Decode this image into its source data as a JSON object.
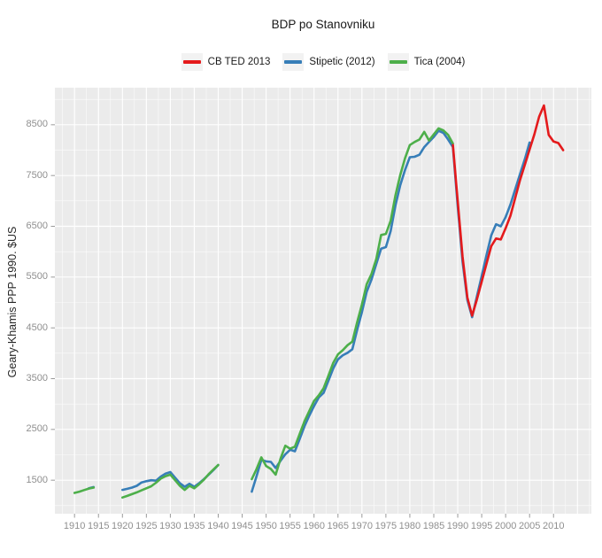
{
  "title": "BDP po Stanovniku",
  "y_axis_title": "Geary-Khamis PPP 1990. $US",
  "legend": {
    "items": [
      {
        "label": "CB TED 2013",
        "color": "#E41A1C"
      },
      {
        "label": "Stipetic (2012)",
        "color": "#377EB8"
      },
      {
        "label": "Tica (2004)",
        "color": "#4DAF4A"
      }
    ]
  },
  "colors": {
    "panel_background": "#EBEBEB",
    "gridline": "#FFFFFF",
    "tick_mark": "#999999",
    "tick_text": "#8F8F8F",
    "red": "#E41A1C",
    "blue": "#377EB8",
    "green": "#4DAF4A"
  },
  "chart_data": {
    "type": "line",
    "title": "BDP po Stanovniku",
    "xlabel": "",
    "ylabel": "Geary-Khamis PPP 1990. $US",
    "x_tick_labels": [
      1910,
      1915,
      1920,
      1925,
      1930,
      1935,
      1940,
      1945,
      1950,
      1955,
      1960,
      1965,
      1970,
      1975,
      1980,
      1985,
      1990,
      1995,
      2000,
      2005,
      2010
    ],
    "y_tick_labels": [
      1500,
      2500,
      3500,
      4500,
      5500,
      6500,
      7500,
      8500
    ],
    "xlim": [
      1905.9,
      2017.9
    ],
    "ylim": [
      840,
      9230
    ],
    "grid": {
      "major": true,
      "minor": true
    },
    "legend_position": "top",
    "series": [
      {
        "name": "Stipetic (2012)",
        "color": "#377EB8",
        "segments": [
          [
            [
              1913,
              1340
            ],
            [
              1914,
              1365
            ]
          ],
          [
            [
              1920,
              1310
            ],
            [
              1921,
              1330
            ],
            [
              1922,
              1355
            ],
            [
              1923,
              1390
            ],
            [
              1924,
              1455
            ],
            [
              1925,
              1480
            ],
            [
              1926,
              1500
            ],
            [
              1927,
              1490
            ],
            [
              1928,
              1570
            ],
            [
              1929,
              1630
            ],
            [
              1930,
              1660
            ],
            [
              1931,
              1550
            ],
            [
              1932,
              1440
            ],
            [
              1933,
              1370
            ],
            [
              1934,
              1430
            ],
            [
              1935,
              1370
            ],
            [
              1936,
              1440
            ],
            [
              1937,
              1520
            ],
            [
              1938,
              1610
            ],
            [
              1939,
              1700
            ],
            [
              1940,
              1800
            ]
          ],
          [
            [
              1947,
              1275
            ],
            [
              1948,
              1580
            ],
            [
              1949,
              1900
            ],
            [
              1950,
              1870
            ],
            [
              1951,
              1860
            ],
            [
              1952,
              1740
            ],
            [
              1953,
              1880
            ],
            [
              1954,
              2010
            ],
            [
              1955,
              2100
            ],
            [
              1956,
              2070
            ],
            [
              1957,
              2310
            ],
            [
              1958,
              2560
            ],
            [
              1959,
              2770
            ],
            [
              1960,
              2960
            ],
            [
              1961,
              3130
            ],
            [
              1962,
              3220
            ],
            [
              1963,
              3460
            ],
            [
              1964,
              3700
            ],
            [
              1965,
              3880
            ],
            [
              1966,
              3960
            ],
            [
              1967,
              4010
            ],
            [
              1968,
              4080
            ],
            [
              1969,
              4460
            ],
            [
              1970,
              4810
            ],
            [
              1971,
              5210
            ],
            [
              1972,
              5450
            ],
            [
              1973,
              5760
            ],
            [
              1974,
              6060
            ],
            [
              1975,
              6090
            ],
            [
              1976,
              6410
            ],
            [
              1977,
              6910
            ],
            [
              1978,
              7310
            ],
            [
              1979,
              7610
            ],
            [
              1980,
              7860
            ],
            [
              1981,
              7870
            ],
            [
              1982,
              7910
            ],
            [
              1983,
              8060
            ],
            [
              1984,
              8160
            ],
            [
              1985,
              8260
            ],
            [
              1986,
              8380
            ],
            [
              1987,
              8340
            ],
            [
              1988,
              8210
            ],
            [
              1989,
              8060
            ],
            [
              1990,
              6900
            ],
            [
              1991,
              5800
            ],
            [
              1992,
              5050
            ],
            [
              1993,
              4710
            ],
            [
              1994,
              5120
            ],
            [
              1995,
              5520
            ],
            [
              1996,
              5930
            ],
            [
              1997,
              6320
            ],
            [
              1998,
              6540
            ],
            [
              1999,
              6500
            ],
            [
              2000,
              6680
            ],
            [
              2001,
              6930
            ],
            [
              2002,
              7230
            ],
            [
              2003,
              7530
            ],
            [
              2004,
              7820
            ],
            [
              2005,
              8150
            ]
          ]
        ]
      },
      {
        "name": "Tica (2004)",
        "color": "#4DAF4A",
        "segments": [
          [
            [
              1910,
              1250
            ],
            [
              1911,
              1275
            ],
            [
              1912,
              1305
            ],
            [
              1913,
              1335
            ],
            [
              1914,
              1355
            ]
          ],
          [
            [
              1920,
              1160
            ],
            [
              1921,
              1190
            ],
            [
              1922,
              1225
            ],
            [
              1923,
              1260
            ],
            [
              1924,
              1300
            ],
            [
              1925,
              1340
            ],
            [
              1926,
              1380
            ],
            [
              1927,
              1450
            ],
            [
              1928,
              1530
            ],
            [
              1929,
              1580
            ],
            [
              1930,
              1610
            ],
            [
              1931,
              1500
            ],
            [
              1932,
              1390
            ],
            [
              1933,
              1310
            ],
            [
              1934,
              1390
            ],
            [
              1935,
              1340
            ],
            [
              1936,
              1420
            ],
            [
              1937,
              1510
            ],
            [
              1938,
              1620
            ],
            [
              1939,
              1710
            ],
            [
              1940,
              1800
            ]
          ],
          [
            [
              1947,
              1520
            ],
            [
              1948,
              1720
            ],
            [
              1949,
              1950
            ],
            [
              1950,
              1780
            ],
            [
              1951,
              1720
            ],
            [
              1952,
              1610
            ],
            [
              1953,
              1920
            ],
            [
              1954,
              2180
            ],
            [
              1955,
              2120
            ],
            [
              1956,
              2160
            ],
            [
              1957,
              2410
            ],
            [
              1958,
              2660
            ],
            [
              1959,
              2860
            ],
            [
              1960,
              3060
            ],
            [
              1961,
              3170
            ],
            [
              1962,
              3310
            ],
            [
              1963,
              3560
            ],
            [
              1964,
              3810
            ],
            [
              1965,
              3980
            ],
            [
              1966,
              4060
            ],
            [
              1967,
              4160
            ],
            [
              1968,
              4230
            ],
            [
              1969,
              4610
            ],
            [
              1970,
              4960
            ],
            [
              1971,
              5360
            ],
            [
              1972,
              5560
            ],
            [
              1973,
              5860
            ],
            [
              1974,
              6330
            ],
            [
              1975,
              6350
            ],
            [
              1976,
              6610
            ],
            [
              1977,
              7110
            ],
            [
              1978,
              7510
            ],
            [
              1979,
              7840
            ],
            [
              1980,
              8100
            ],
            [
              1981,
              8160
            ],
            [
              1982,
              8210
            ],
            [
              1983,
              8360
            ],
            [
              1984,
              8190
            ],
            [
              1985,
              8310
            ],
            [
              1986,
              8430
            ],
            [
              1987,
              8390
            ],
            [
              1988,
              8300
            ],
            [
              1989,
              8130
            ]
          ]
        ]
      },
      {
        "name": "CB TED 2013",
        "color": "#E41A1C",
        "segments": [
          [
            [
              1989,
              8100
            ],
            [
              1990,
              7000
            ],
            [
              1991,
              5900
            ],
            [
              1992,
              5100
            ],
            [
              1993,
              4740
            ],
            [
              1994,
              5060
            ],
            [
              1995,
              5410
            ],
            [
              1996,
              5760
            ],
            [
              1997,
              6110
            ],
            [
              1998,
              6260
            ],
            [
              1999,
              6240
            ],
            [
              2000,
              6460
            ],
            [
              2001,
              6710
            ],
            [
              2002,
              7060
            ],
            [
              2003,
              7410
            ],
            [
              2004,
              7710
            ],
            [
              2005,
              8010
            ],
            [
              2006,
              8310
            ],
            [
              2007,
              8660
            ],
            [
              2008,
              8880
            ],
            [
              2009,
              8300
            ],
            [
              2010,
              8170
            ],
            [
              2011,
              8140
            ],
            [
              2012,
              8000
            ]
          ]
        ]
      }
    ]
  }
}
